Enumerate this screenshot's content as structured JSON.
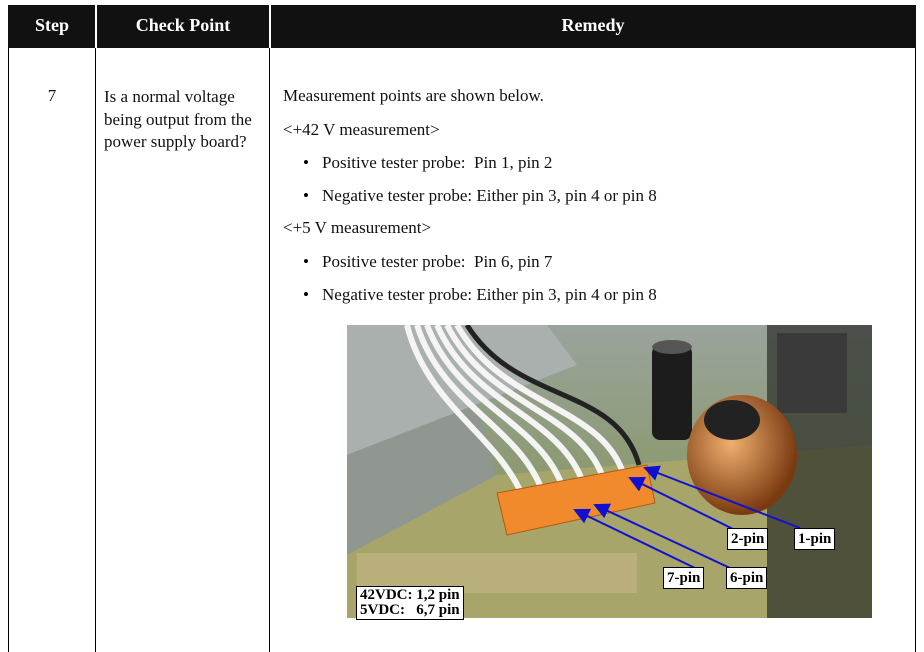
{
  "table": {
    "headers": [
      "Step",
      "Check Point",
      "Remedy"
    ],
    "rows": [
      {
        "step": "7",
        "check_point": "Is a normal voltage being output from the power supply board?",
        "remedy": {
          "intro": "Measurement points are shown below.",
          "sections": [
            {
              "heading": "<+42 V measurement>",
              "items": [
                "Positive tester probe:  Pin 1, pin 2",
                "Negative tester probe: Either pin 3, pin 4 or pin 8"
              ]
            },
            {
              "heading": "<+5 V measurement>",
              "items": [
                "Positive tester probe:  Pin 6, pin 7",
                "Negative tester probe: Either pin 3, pin 4 or pin 8"
              ]
            }
          ]
        }
      }
    ]
  },
  "photo": {
    "pin_labels": [
      "2-pin",
      "1-pin",
      "7-pin",
      "6-pin"
    ],
    "legend": [
      "42VDC: 1,2 pin",
      "5VDC:   6,7 pin"
    ]
  }
}
